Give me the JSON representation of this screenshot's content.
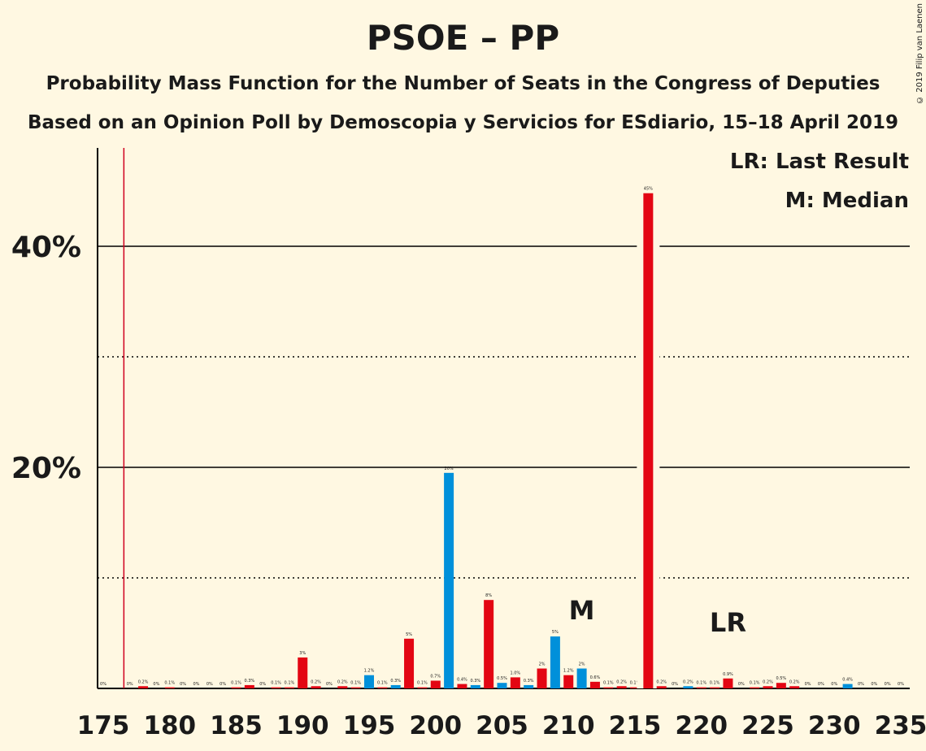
{
  "title": "PSOE – PP",
  "subtitle1": "Probability Mass Function for the Number of Seats in the Congress of Deputies",
  "subtitle2": "Based on an Opinion Poll by Demoscopia y Servicios for ESdiario, 15–18 April 2019",
  "copyright": "© 2019 Filip van Laenen",
  "legend": {
    "lr": "LR: Last Result",
    "median": "M: Median"
  },
  "colors": {
    "red": "#E30613",
    "blue": "#0090DA",
    "background": "#FFF8E2",
    "last_result_line": "#D0001F"
  },
  "chart_data": {
    "type": "bar",
    "xlabel": "",
    "ylabel": "",
    "xlim": [
      175,
      235
    ],
    "ylim": [
      0,
      49
    ],
    "x_ticks": [
      "175",
      "180",
      "185",
      "190",
      "195",
      "200",
      "205",
      "210",
      "215",
      "220",
      "225",
      "230",
      "235"
    ],
    "y_ticks": [
      {
        "value": 20,
        "label": "20%"
      },
      {
        "value": 40,
        "label": "40%"
      }
    ],
    "gridlines_solid": [
      20,
      40
    ],
    "gridlines_dotted": [
      10,
      30
    ],
    "last_result_line": 176,
    "median": {
      "seat": 211,
      "label": "M"
    },
    "last_result": {
      "seat": 222,
      "label": "LR"
    },
    "bars": [
      {
        "seat": 175,
        "value": 0.0,
        "label": "0%",
        "color": "red"
      },
      {
        "seat": 177,
        "value": 0.0,
        "label": "0%",
        "color": "red"
      },
      {
        "seat": 178,
        "value": 0.2,
        "label": "0.2%",
        "color": "red"
      },
      {
        "seat": 179,
        "value": 0.0,
        "label": "0%",
        "color": "red"
      },
      {
        "seat": 180,
        "value": 0.1,
        "label": "0.1%",
        "color": "red"
      },
      {
        "seat": 181,
        "value": 0.0,
        "label": "0%",
        "color": "red"
      },
      {
        "seat": 182,
        "value": 0.0,
        "label": "0%",
        "color": "red"
      },
      {
        "seat": 183,
        "value": 0.0,
        "label": "0%",
        "color": "red"
      },
      {
        "seat": 184,
        "value": 0.0,
        "label": "0%",
        "color": "red"
      },
      {
        "seat": 185,
        "value": 0.1,
        "label": "0.1%",
        "color": "red"
      },
      {
        "seat": 186,
        "value": 0.3,
        "label": "0.3%",
        "color": "red"
      },
      {
        "seat": 187,
        "value": 0.0,
        "label": "0%",
        "color": "red"
      },
      {
        "seat": 188,
        "value": 0.1,
        "label": "0.1%",
        "color": "red"
      },
      {
        "seat": 189,
        "value": 0.1,
        "label": "0.1%",
        "color": "red"
      },
      {
        "seat": 190,
        "value": 2.8,
        "label": "3%",
        "color": "red"
      },
      {
        "seat": 191,
        "value": 0.2,
        "label": "0.2%",
        "color": "red"
      },
      {
        "seat": 192,
        "value": 0.0,
        "label": "0%",
        "color": "red"
      },
      {
        "seat": 193,
        "value": 0.2,
        "label": "0.2%",
        "color": "red"
      },
      {
        "seat": 194,
        "value": 0.1,
        "label": "0.1%",
        "color": "red"
      },
      {
        "seat": 195,
        "value": 1.2,
        "label": "1.2%",
        "color": "blue"
      },
      {
        "seat": 196,
        "value": 0.1,
        "label": "0.1%",
        "color": "red"
      },
      {
        "seat": 197,
        "value": 0.3,
        "label": "0.3%",
        "color": "blue"
      },
      {
        "seat": 198,
        "value": 4.5,
        "label": "5%",
        "color": "red"
      },
      {
        "seat": 199,
        "value": 0.1,
        "label": "0.1%",
        "color": "red"
      },
      {
        "seat": 200,
        "value": 0.7,
        "label": "0.7%",
        "color": "red"
      },
      {
        "seat": 201,
        "value": 19.5,
        "label": "20%",
        "color": "blue"
      },
      {
        "seat": 202,
        "value": 0.4,
        "label": "0.4%",
        "color": "red"
      },
      {
        "seat": 203,
        "value": 0.3,
        "label": "0.3%",
        "color": "blue"
      },
      {
        "seat": 204,
        "value": 8.0,
        "label": "8%",
        "color": "red"
      },
      {
        "seat": 205,
        "value": 0.5,
        "label": "0.5%",
        "color": "blue"
      },
      {
        "seat": 206,
        "value": 1.0,
        "label": "1.0%",
        "color": "red"
      },
      {
        "seat": 207,
        "value": 0.3,
        "label": "0.3%",
        "color": "blue"
      },
      {
        "seat": 208,
        "value": 1.8,
        "label": "2%",
        "color": "red"
      },
      {
        "seat": 209,
        "value": 4.7,
        "label": "5%",
        "color": "blue"
      },
      {
        "seat": 210,
        "value": 1.2,
        "label": "1.2%",
        "color": "red"
      },
      {
        "seat": 211,
        "value": 1.8,
        "label": "2%",
        "color": "blue"
      },
      {
        "seat": 212,
        "value": 0.6,
        "label": "0.6%",
        "color": "red"
      },
      {
        "seat": 213,
        "value": 0.1,
        "label": "0.1%",
        "color": "red"
      },
      {
        "seat": 214,
        "value": 0.2,
        "label": "0.2%",
        "color": "red"
      },
      {
        "seat": 215,
        "value": 0.1,
        "label": "0.1%",
        "color": "red"
      },
      {
        "seat": 216,
        "value": 44.8,
        "label": "45%",
        "color": "red"
      },
      {
        "seat": 217,
        "value": 0.2,
        "label": "0.2%",
        "color": "red"
      },
      {
        "seat": 218,
        "value": 0.0,
        "label": "0%",
        "color": "red"
      },
      {
        "seat": 219,
        "value": 0.2,
        "label": "0.2%",
        "color": "blue"
      },
      {
        "seat": 220,
        "value": 0.1,
        "label": "0.1%",
        "color": "red"
      },
      {
        "seat": 221,
        "value": 0.1,
        "label": "0.1%",
        "color": "red"
      },
      {
        "seat": 222,
        "value": 0.9,
        "label": "0.9%",
        "color": "red"
      },
      {
        "seat": 223,
        "value": 0.0,
        "label": "0%",
        "color": "red"
      },
      {
        "seat": 224,
        "value": 0.1,
        "label": "0.1%",
        "color": "red"
      },
      {
        "seat": 225,
        "value": 0.2,
        "label": "0.2%",
        "color": "red"
      },
      {
        "seat": 226,
        "value": 0.5,
        "label": "0.5%",
        "color": "red"
      },
      {
        "seat": 227,
        "value": 0.2,
        "label": "0.2%",
        "color": "red"
      },
      {
        "seat": 228,
        "value": 0.0,
        "label": "0%",
        "color": "red"
      },
      {
        "seat": 229,
        "value": 0.0,
        "label": "0%",
        "color": "red"
      },
      {
        "seat": 230,
        "value": 0.0,
        "label": "0%",
        "color": "red"
      },
      {
        "seat": 231,
        "value": 0.4,
        "label": "0.4%",
        "color": "blue"
      },
      {
        "seat": 232,
        "value": 0.0,
        "label": "0%",
        "color": "red"
      },
      {
        "seat": 233,
        "value": 0.0,
        "label": "0%",
        "color": "red"
      },
      {
        "seat": 234,
        "value": 0.0,
        "label": "0%",
        "color": "red"
      },
      {
        "seat": 235,
        "value": 0.0,
        "label": "0%",
        "color": "red"
      }
    ]
  }
}
